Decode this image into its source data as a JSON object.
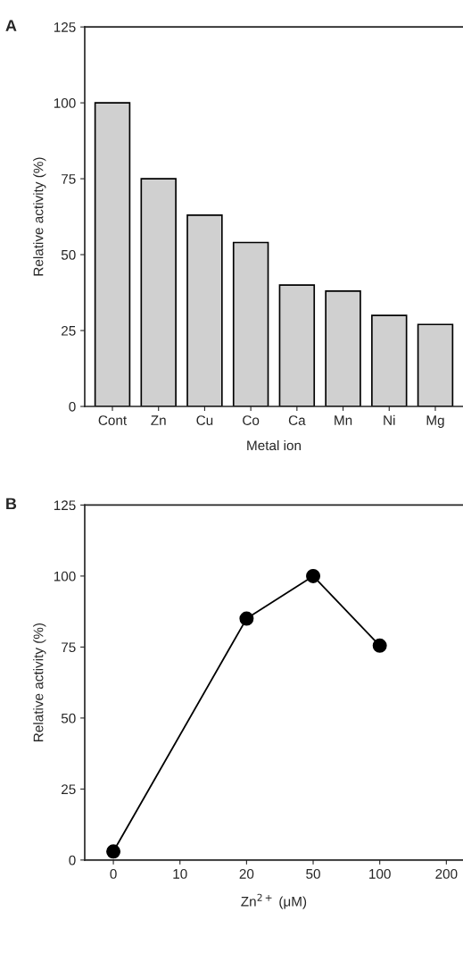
{
  "chart_data": [
    {
      "type": "bar",
      "annotations": [
        "A"
      ],
      "xlabel": "Metal ion",
      "ylabel": "Relative activity (%)",
      "categories": [
        "Cont",
        "Zn",
        "Cu",
        "Co",
        "Ca",
        "Mn",
        "Ni",
        "Mg"
      ],
      "values": [
        100,
        75,
        63,
        54,
        40,
        38,
        30,
        27
      ],
      "color": "#d0d0d0",
      "ylim": [
        0,
        125
      ],
      "yticks": [
        0,
        25,
        50,
        75,
        100,
        125
      ],
      "grid": false
    },
    {
      "type": "line",
      "annotations": [
        "B"
      ],
      "xlabel": "Zn$^{2+}$ (μM)",
      "ylabel": "Relative activity (%)",
      "categories": [
        "0",
        "10",
        "20",
        "50",
        "100",
        "200"
      ],
      "values": [
        3,
        null,
        85,
        100,
        75.5,
        null
      ],
      "color": "#000000",
      "marker": "circle",
      "line_style": "solid",
      "ylim": [
        0,
        125
      ],
      "yticks": [
        0,
        25,
        50,
        75,
        100,
        125
      ],
      "grid": false
    }
  ]
}
